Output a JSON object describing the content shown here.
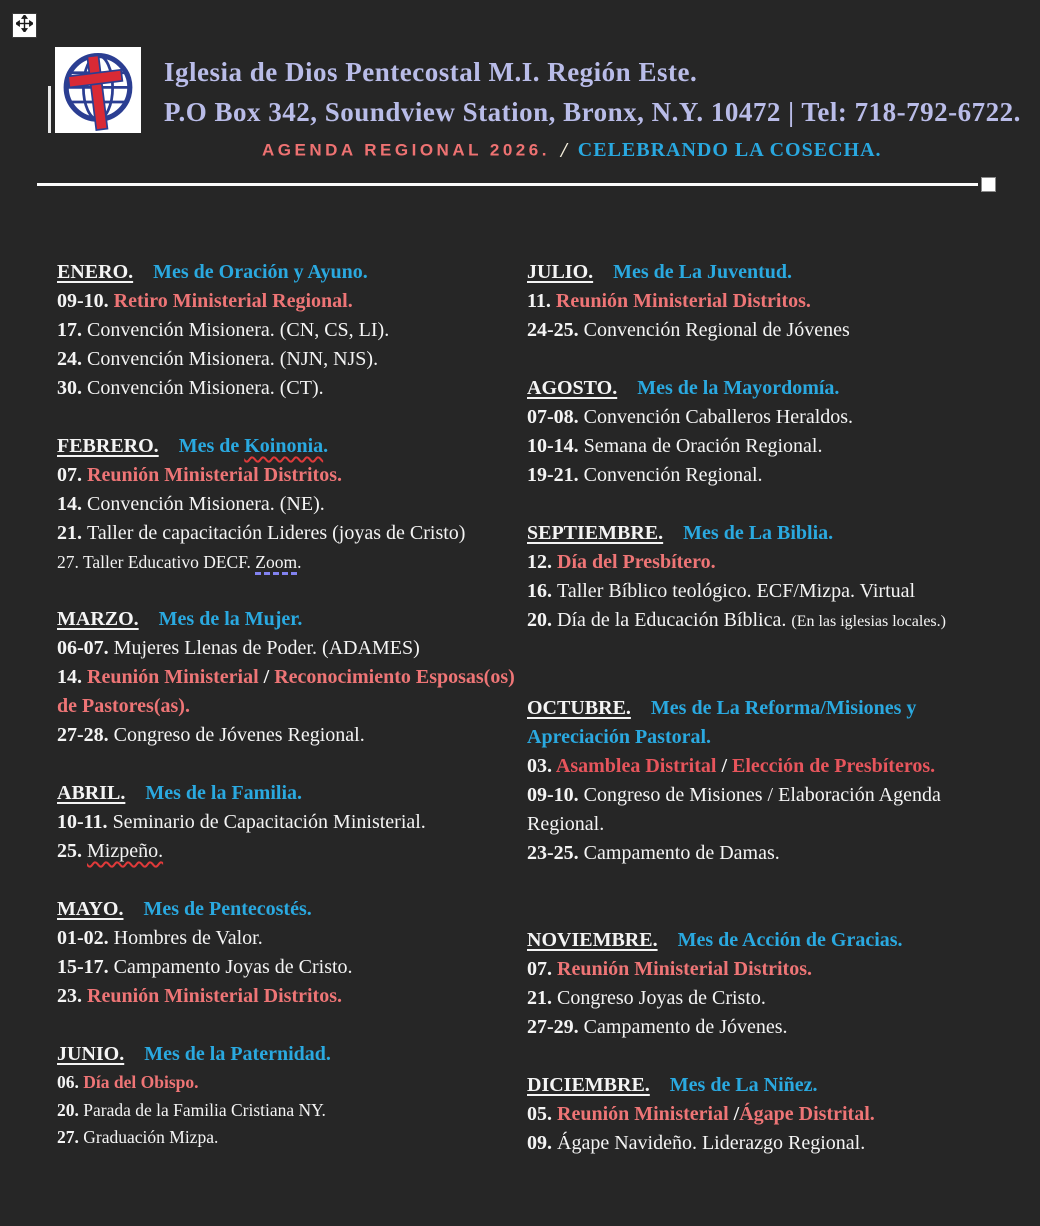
{
  "colors": {
    "background": "#262626",
    "title_lavender": "#b9bce8",
    "theme_blue": "#2aa9e0",
    "event_red": "#ee7576",
    "event_red_deep": "#e7555c",
    "agenda_red": "#ee7272",
    "body_white": "#f4f4f4"
  },
  "icons": {
    "move": "move-cross-arrows-icon",
    "resize": "resize-square-handle",
    "logo": "globe-with-cross-logo"
  },
  "header": {
    "title": "Iglesia de Dios Pentecostal M.I. Región Este.",
    "address": "P.O Box 342, Soundview Station, Bronx, N.Y. 10472 | Tel: 718-792-6722.",
    "agenda_label": "AGENDA REGIONAL 2026.",
    "slash": "/",
    "motto": "CELEBRANDO LA COSECHA."
  },
  "months": {
    "left": [
      {
        "name": "ENERO.",
        "theme": [
          {
            "t": "Mes de Oración y Ayuno.",
            "c": "blue",
            "b": true
          }
        ],
        "events": [
          {
            "d": "09-10.",
            "s": [
              {
                "t": "Retiro Ministerial Regional.",
                "c": "red",
                "b": true
              }
            ]
          },
          {
            "d": "17.",
            "s": [
              {
                "t": "Convención Misionera. (CN, CS, LI)."
              }
            ]
          },
          {
            "d": "24.",
            "s": [
              {
                "t": "Convención Misionera. (NJN, NJS)."
              }
            ]
          },
          {
            "d": "30.",
            "s": [
              {
                "t": "Convención Misionera. (CT)."
              }
            ]
          }
        ]
      },
      {
        "name": "FEBRERO.",
        "theme": [
          {
            "t": "Mes de ",
            "c": "blue",
            "b": true
          },
          {
            "t": "Koinonia",
            "c": "blue",
            "b": true,
            "deco": "wavy-red"
          },
          {
            "t": ".",
            "c": "blue",
            "b": true
          }
        ],
        "events": [
          {
            "d": "07.",
            "s": [
              {
                "t": "Reunión Ministerial Distritos.",
                "c": "red",
                "b": true
              }
            ]
          },
          {
            "d": "14.",
            "s": [
              {
                "t": "Convención Misionera. (NE)."
              }
            ]
          },
          {
            "d": "21.",
            "s": [
              {
                "t": "Taller de capacitación Lideres (joyas de Cristo)"
              }
            ]
          },
          {
            "d": "27.",
            "d_regular": true,
            "small": true,
            "s": [
              {
                "t": "Taller Educativo DECF. "
              },
              {
                "t": "Zoom",
                "deco": "dash-purple"
              },
              {
                "t": "."
              }
            ]
          }
        ]
      },
      {
        "name": "MARZO.",
        "theme": [
          {
            "t": "Mes de la Mujer.",
            "c": "blue",
            "b": true
          }
        ],
        "events": [
          {
            "d": "06-07.",
            "s": [
              {
                "t": "Mujeres Llenas de Poder. (ADAMES)"
              }
            ]
          },
          {
            "d": "14.",
            "s": [
              {
                "t": "Reunión Ministerial",
                "c": "red",
                "b": true
              },
              {
                "t": " / ",
                "b": true
              },
              {
                "t": "Reconocimiento Esposas(os) de Pastores(as).",
                "c": "red",
                "b": true
              }
            ]
          },
          {
            "d": "27-28.",
            "s": [
              {
                "t": "Congreso de Jóvenes Regional."
              }
            ]
          }
        ]
      },
      {
        "name": "ABRIL.",
        "theme": [
          {
            "t": "Mes de la Familia.",
            "c": "blue",
            "b": true
          }
        ],
        "events": [
          {
            "d": "10-11.",
            "s": [
              {
                "t": "Seminario de Capacitación Ministerial."
              }
            ]
          },
          {
            "d": "25.",
            "s": [
              {
                "t": "Mizpeño.",
                "deco": "wavy-red"
              }
            ]
          }
        ]
      },
      {
        "name": "MAYO.",
        "theme": [
          {
            "t": "Mes de Pentecostés.",
            "c": "blue",
            "b": true
          }
        ],
        "events": [
          {
            "d": "01-02.",
            "s": [
              {
                "t": "Hombres de Valor."
              }
            ]
          },
          {
            "d": "15-17.",
            "s": [
              {
                "t": "Campamento Joyas de Cristo."
              }
            ]
          },
          {
            "d": "23.",
            "s": [
              {
                "t": "Reunión Ministerial Distritos.",
                "c": "red",
                "b": true
              }
            ]
          }
        ]
      },
      {
        "name": "JUNIO.",
        "small": true,
        "theme": [
          {
            "t": "Mes de la Paternidad.",
            "c": "blue",
            "b": true
          }
        ],
        "events": [
          {
            "d": "06.",
            "s": [
              {
                "t": "Día del Obispo.",
                "c": "red",
                "b": true
              }
            ]
          },
          {
            "d": "20.",
            "s": [
              {
                "t": "Parada de la Familia Cristiana NY."
              }
            ]
          },
          {
            "d": "27.",
            "s": [
              {
                "t": "Graduación Mizpa."
              }
            ]
          }
        ]
      }
    ],
    "right": [
      {
        "name": "JULIO.",
        "theme": [
          {
            "t": "Mes de La Juventud.",
            "c": "blue",
            "b": true
          }
        ],
        "events": [
          {
            "d": "11.",
            "s": [
              {
                "t": "Reunión Ministerial Distritos.",
                "c": "red",
                "b": true
              }
            ]
          },
          {
            "d": "24-25.",
            "s": [
              {
                "t": "Convención Regional de Jóvenes"
              }
            ]
          }
        ]
      },
      {
        "name": "AGOSTO.",
        "theme": [
          {
            "t": "Mes de la Mayordomía.",
            "c": "blue",
            "b": true
          }
        ],
        "events": [
          {
            "d": "07-08.",
            "s": [
              {
                "t": "Convención Caballeros Heraldos."
              }
            ]
          },
          {
            "d": "10-14.",
            "s": [
              {
                "t": "Semana de Oración Regional."
              }
            ]
          },
          {
            "d": "19-21.",
            "s": [
              {
                "t": "Convención Regional."
              }
            ]
          }
        ]
      },
      {
        "name": "SEPTIEMBRE.",
        "theme": [
          {
            "t": "Mes de La Biblia.",
            "c": "blue",
            "b": true
          }
        ],
        "events": [
          {
            "d": "12.",
            "s": [
              {
                "t": "Día del Presbítero.",
                "c": "red",
                "b": true
              }
            ]
          },
          {
            "d": "16.",
            "s": [
              {
                "t": "Taller Bíblico teológico. ECF/Mizpa. Virtual"
              }
            ]
          },
          {
            "d": "20.",
            "s": [
              {
                "t": "Día de la Educación Bíblica. "
              },
              {
                "t": "(En las iglesias locales.)",
                "small": true
              }
            ]
          }
        ]
      },
      {
        "name": "OCTUBRE.",
        "gap": "extra",
        "theme": [
          {
            "t": "Mes de La Reforma/Misiones y Apreciación Pastoral.",
            "c": "blue",
            "b": true
          }
        ],
        "events": [
          {
            "d": "03.",
            "s": [
              {
                "t": "Asamblea Distrital",
                "c": "red2",
                "b": true
              },
              {
                "t": " / ",
                "b": true
              },
              {
                "t": "Elección de Presbíteros.",
                "c": "red2",
                "b": true
              }
            ]
          },
          {
            "d": "09-10.",
            "s": [
              {
                "t": "Congreso de Misiones / Elaboración Agenda Regional."
              }
            ]
          },
          {
            "d": "23-25.",
            "s": [
              {
                "t": "Campamento de Damas."
              }
            ]
          }
        ]
      },
      {
        "name": "NOVIEMBRE.",
        "gap": "extra",
        "theme": [
          {
            "t": "Mes de Acción de Gracias.",
            "c": "blue",
            "b": true
          }
        ],
        "events": [
          {
            "d": "07.",
            "s": [
              {
                "t": "Reunión Ministerial Distritos.",
                "c": "red",
                "b": true
              }
            ]
          },
          {
            "d": "21.",
            "s": [
              {
                "t": "Congreso Joyas de Cristo."
              }
            ]
          },
          {
            "d": "27-29.",
            "s": [
              {
                "t": "Campamento de Jóvenes."
              }
            ]
          }
        ]
      },
      {
        "name": "DICIEMBRE.",
        "theme": [
          {
            "t": "Mes de La Niñez.",
            "c": "blue",
            "b": true
          }
        ],
        "events": [
          {
            "d": "05.",
            "s": [
              {
                "t": "Reunión Ministerial",
                "c": "red",
                "b": true
              },
              {
                "t": " /",
                "b": true
              },
              {
                "t": "Ágape Distrital.",
                "c": "red",
                "b": true
              }
            ]
          },
          {
            "d": "09.",
            "s": [
              {
                "t": "Ágape Navideño. Liderazgo Regional."
              }
            ]
          }
        ]
      }
    ]
  }
}
